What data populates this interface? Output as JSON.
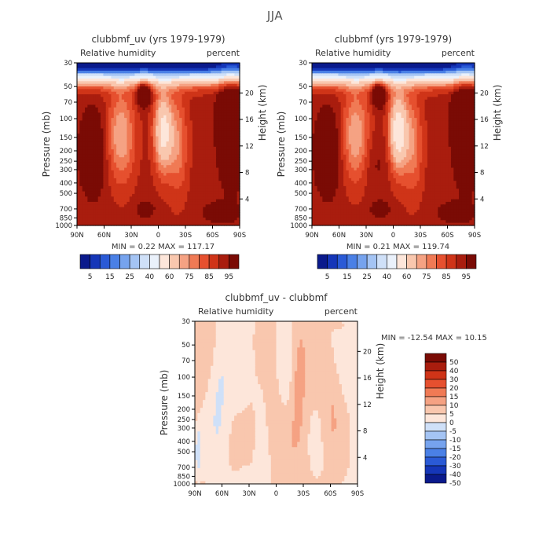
{
  "suptitle": "JJA",
  "chart_data": [
    {
      "type": "heatmap",
      "title": "clubbmf_uv (yrs 1979-1979)",
      "left_subtitle": "Relative humidity",
      "right_subtitle": "percent",
      "xlabel": "",
      "ylabel": "Pressure (mb)",
      "ylabel_right": "Height (km)",
      "x_ticks": [
        "90N",
        "60N",
        "30N",
        "0",
        "30S",
        "60S",
        "90S"
      ],
      "y_ticks": [
        "30",
        "50",
        "70",
        "100",
        "150",
        "200",
        "250",
        "300",
        "400",
        "500",
        "700",
        "850",
        "1000"
      ],
      "y_right_ticks": [
        "20",
        "16",
        "12",
        "8",
        "4"
      ],
      "ylim": [
        1000,
        30
      ],
      "xlim": [
        90,
        -90
      ],
      "stats": "MIN =    0.22   MAX =  117.17",
      "colorbar": {
        "labels": [
          "5",
          "15",
          "25",
          "40",
          "60",
          "75",
          "85",
          "95"
        ],
        "levels": [
          5,
          10,
          15,
          20,
          25,
          30,
          40,
          50,
          60,
          70,
          75,
          80,
          85,
          90,
          95
        ],
        "colors": [
          "#0a1a8c",
          "#1536b8",
          "#2a5ad6",
          "#4a80e6",
          "#76a3ee",
          "#a4c4f4",
          "#cfe0f8",
          "#eaf1fb",
          "#fde6da",
          "#f9c7ae",
          "#f5a283",
          "#f07a55",
          "#e6502f",
          "#cf3418",
          "#a91d0e",
          "#7a0b05"
        ]
      }
    },
    {
      "type": "heatmap",
      "title": "clubbmf (yrs 1979-1979)",
      "left_subtitle": "Relative humidity",
      "right_subtitle": "percent",
      "xlabel": "",
      "ylabel": "Pressure (mb)",
      "ylabel_right": "Height (km)",
      "x_ticks": [
        "90N",
        "60N",
        "30N",
        "0",
        "30S",
        "60S",
        "90S"
      ],
      "y_ticks": [
        "30",
        "50",
        "70",
        "100",
        "150",
        "200",
        "250",
        "300",
        "400",
        "500",
        "700",
        "850",
        "1000"
      ],
      "y_right_ticks": [
        "20",
        "16",
        "12",
        "8",
        "4"
      ],
      "ylim": [
        1000,
        30
      ],
      "xlim": [
        90,
        -90
      ],
      "stats": "MIN =    0.21   MAX =  119.74",
      "colorbar": {
        "labels": [
          "5",
          "15",
          "25",
          "40",
          "60",
          "75",
          "85",
          "95"
        ],
        "levels": [
          5,
          10,
          15,
          20,
          25,
          30,
          40,
          50,
          60,
          70,
          75,
          80,
          85,
          90,
          95
        ],
        "colors": [
          "#0a1a8c",
          "#1536b8",
          "#2a5ad6",
          "#4a80e6",
          "#76a3ee",
          "#a4c4f4",
          "#cfe0f8",
          "#eaf1fb",
          "#fde6da",
          "#f9c7ae",
          "#f5a283",
          "#f07a55",
          "#e6502f",
          "#cf3418",
          "#a91d0e",
          "#7a0b05"
        ]
      }
    },
    {
      "type": "heatmap",
      "title": "clubbmf_uv - clubbmf",
      "left_subtitle": "Relative humidity",
      "right_subtitle": "percent",
      "xlabel": "",
      "ylabel": "Pressure (mb)",
      "ylabel_right": "Height (km)",
      "x_ticks": [
        "90N",
        "60N",
        "30N",
        "0",
        "30S",
        "60S",
        "90S"
      ],
      "y_ticks": [
        "30",
        "50",
        "70",
        "100",
        "150",
        "200",
        "250",
        "300",
        "400",
        "500",
        "700",
        "850",
        "1000"
      ],
      "y_right_ticks": [
        "20",
        "16",
        "12",
        "8",
        "4"
      ],
      "ylim": [
        1000,
        30
      ],
      "xlim": [
        90,
        -90
      ],
      "stats": "MIN = -12.54   MAX =   10.15",
      "colorbar": {
        "labels": [
          "50",
          "40",
          "30",
          "20",
          "15",
          "10",
          "5",
          "0",
          "-5",
          "-10",
          "-15",
          "-20",
          "-30",
          "-40",
          "-50"
        ],
        "levels": [
          -50,
          -40,
          -30,
          -20,
          -15,
          -10,
          -5,
          0,
          5,
          10,
          15,
          20,
          30,
          40,
          50
        ],
        "colors": [
          "#0a1a8c",
          "#1536b8",
          "#2a5ad6",
          "#4a80e6",
          "#76a3ee",
          "#a4c4f4",
          "#cfe0f8",
          "#fde6da",
          "#f9c7ae",
          "#f5a283",
          "#f07a55",
          "#e6502f",
          "#cf3418",
          "#a91d0e",
          "#7a0b05"
        ]
      }
    }
  ]
}
